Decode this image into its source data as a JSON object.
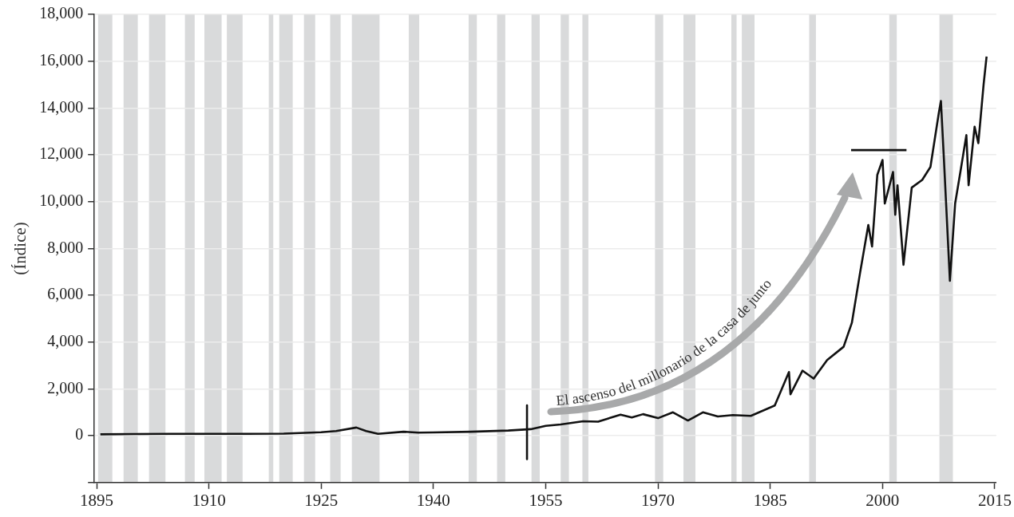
{
  "chart_data": {
    "type": "line",
    "ylabel": "(Índice)",
    "xlim": [
      1894.7,
      2015.2
    ],
    "xticks": [
      1895,
      1910,
      1925,
      1940,
      1955,
      1970,
      1985,
      2000,
      2015
    ],
    "ylim": [
      -2000,
      18000
    ],
    "yticks": [
      {
        "value": -2000,
        "label": null
      },
      0,
      {
        "value": 2000,
        "label": "2,000"
      },
      {
        "value": 4000,
        "label": "4,000"
      },
      {
        "value": 6000,
        "label": "6,000"
      },
      {
        "value": 8000,
        "label": "8,000"
      },
      {
        "value": 10000,
        "label": "10,000"
      },
      {
        "value": 12000,
        "label": "12,000"
      },
      {
        "value": 14000,
        "label": "14,000"
      },
      {
        "value": 16000,
        "label": "16,000"
      },
      {
        "value": 18000,
        "label": "18,000"
      }
    ],
    "grid": "y",
    "annotations": [
      "El ascenso del millonario de la casa de junto"
    ],
    "series": [
      {
        "color": "#111111",
        "x": [
          1895.5,
          1900,
          1905,
          1910,
          1915,
          1920,
          1925,
          1927,
          1929.7,
          1931,
          1932.6,
          1936,
          1938,
          1940,
          1945,
          1950,
          1953,
          1955,
          1957,
          1960,
          1962,
          1965,
          1966.5,
          1968,
          1970,
          1972,
          1974,
          1976,
          1978,
          1980,
          1982.4,
          1985.6,
          1987.5,
          1987.7,
          1989.3,
          1990.8,
          1992.6,
          1994.8,
          1995.9,
          1997,
          1998.1,
          1998.6,
          1999.3,
          2000,
          2000.3,
          2001.4,
          2001.7,
          2002,
          2002.8,
          2003.9,
          2005.3,
          2006.4,
          2007.5,
          2007.8,
          2008.2,
          2009,
          2009.7,
          2010.4,
          2011.2,
          2011.5,
          2012.3,
          2012.8,
          2013.5,
          2013.9
        ],
        "values": [
          60,
          70,
          80,
          80,
          80,
          90,
          150,
          200,
          350,
          200,
          80,
          170,
          130,
          140,
          170,
          220,
          280,
          420,
          480,
          620,
          600,
          900,
          780,
          920,
          750,
          1000,
          650,
          1000,
          820,
          880,
          850,
          1290,
          2720,
          1770,
          2780,
          2440,
          3230,
          3800,
          4820,
          6960,
          9000,
          8080,
          11140,
          11780,
          9920,
          11270,
          9440,
          10700,
          7300,
          10600,
          10930,
          11480,
          13750,
          14300,
          11820,
          6620,
          9920,
          11270,
          12840,
          10700,
          13200,
          12500,
          15000,
          16200
        ]
      },
      {
        "color": "#111111",
        "x": [
          1952.5,
          1952.5
        ],
        "values": [
          1300,
          -1000
        ]
      },
      {
        "color": "#111111",
        "x": [
          1995.8,
          2003.2
        ],
        "values": [
          12200,
          12200
        ]
      }
    ],
    "bands": [
      {
        "axis": "x",
        "from": 1895.2,
        "to": 1897.1,
        "color": "#d9dadb"
      },
      {
        "axis": "x",
        "from": 1898.6,
        "to": 1900.5,
        "color": "#d9dadb"
      },
      {
        "axis": "x",
        "from": 1902.0,
        "to": 1904.2,
        "color": "#d9dadb"
      },
      {
        "axis": "x",
        "from": 1906.8,
        "to": 1908.1,
        "color": "#d9dadb"
      },
      {
        "axis": "x",
        "from": 1909.4,
        "to": 1911.7,
        "color": "#d9dadb"
      },
      {
        "axis": "x",
        "from": 1912.4,
        "to": 1914.5,
        "color": "#d9dadb"
      },
      {
        "axis": "x",
        "from": 1918.0,
        "to": 1918.6,
        "color": "#d9dadb"
      },
      {
        "axis": "x",
        "from": 1919.4,
        "to": 1921.2,
        "color": "#d9dadb"
      },
      {
        "axis": "x",
        "from": 1922.7,
        "to": 1924.2,
        "color": "#d9dadb"
      },
      {
        "axis": "x",
        "from": 1926.2,
        "to": 1927.6,
        "color": "#d9dadb"
      },
      {
        "axis": "x",
        "from": 1929.1,
        "to": 1932.8,
        "color": "#d9dadb"
      },
      {
        "axis": "x",
        "from": 1936.7,
        "to": 1938.1,
        "color": "#d9dadb"
      },
      {
        "axis": "x",
        "from": 1944.7,
        "to": 1945.8,
        "color": "#d9dadb"
      },
      {
        "axis": "x",
        "from": 1948.5,
        "to": 1949.6,
        "color": "#d9dadb"
      },
      {
        "axis": "x",
        "from": 1953.1,
        "to": 1954.2,
        "color": "#d9dadb"
      },
      {
        "axis": "x",
        "from": 1957.0,
        "to": 1958.1,
        "color": "#d9dadb"
      },
      {
        "axis": "x",
        "from": 1959.9,
        "to": 1960.7,
        "color": "#d9dadb"
      },
      {
        "axis": "x",
        "from": 1969.6,
        "to": 1970.7,
        "color": "#d9dadb"
      },
      {
        "axis": "x",
        "from": 1973.4,
        "to": 1975.0,
        "color": "#d9dadb"
      },
      {
        "axis": "x",
        "from": 1979.8,
        "to": 1980.5,
        "color": "#d9dadb"
      },
      {
        "axis": "x",
        "from": 1981.2,
        "to": 1982.9,
        "color": "#d9dadb"
      },
      {
        "axis": "x",
        "from": 1990.2,
        "to": 1991.1,
        "color": "#d9dadb"
      },
      {
        "axis": "x",
        "from": 2000.9,
        "to": 2001.9,
        "color": "#d9dadb"
      },
      {
        "axis": "x",
        "from": 2007.6,
        "to": 2009.4,
        "color": "#d9dadb"
      }
    ]
  }
}
